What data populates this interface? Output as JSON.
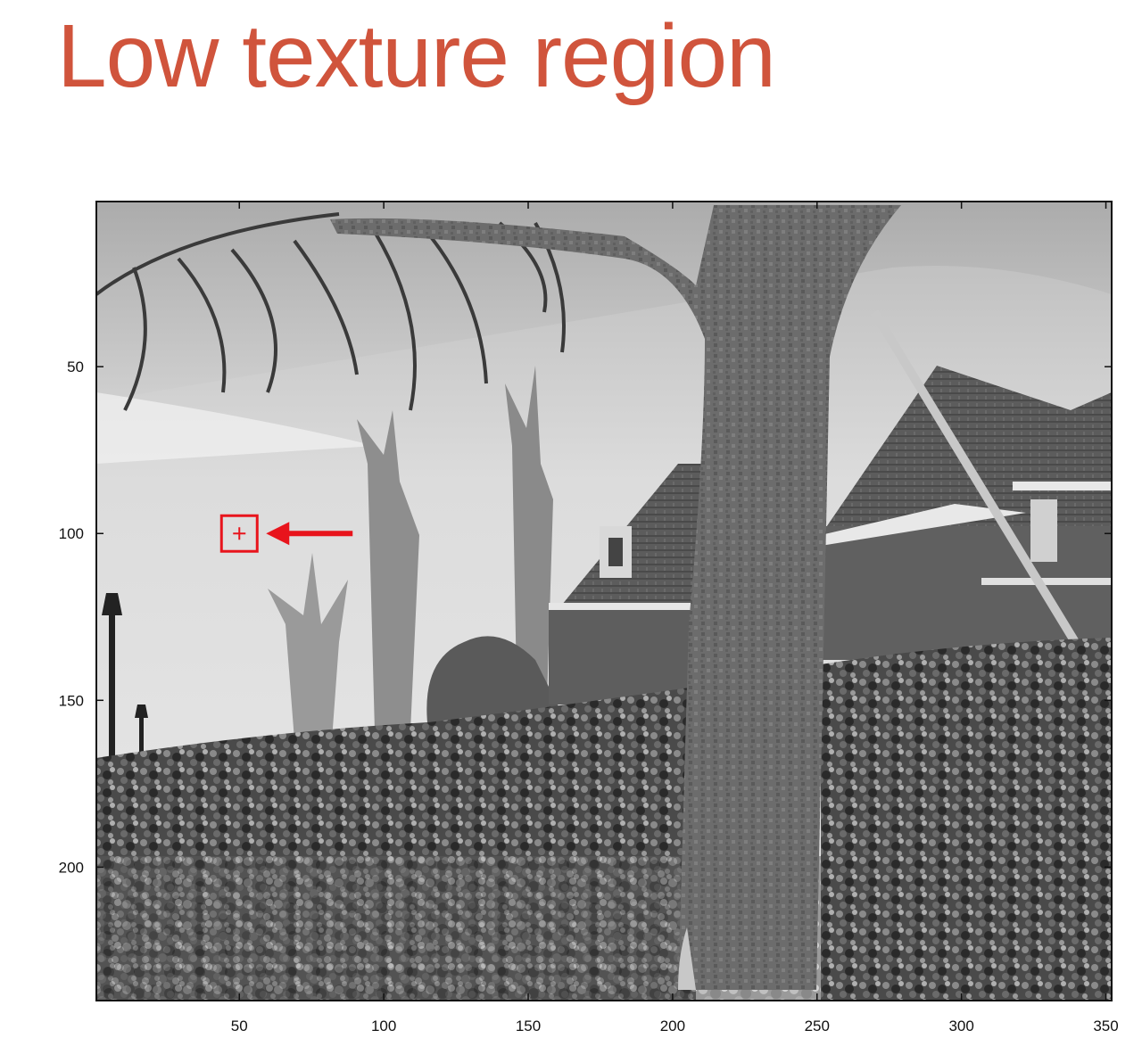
{
  "slide": {
    "title": "Low texture region"
  },
  "plot": {
    "x_ticks": [
      50,
      100,
      150,
      200,
      250,
      300,
      350
    ],
    "y_ticks": [
      50,
      100,
      150,
      200
    ],
    "xlim": [
      0.5,
      352
    ],
    "ylim": [
      0.5,
      240
    ],
    "y_axis_reversed": true
  },
  "annotation": {
    "marker_x": 50,
    "marker_y": 100,
    "color": "#e8141c"
  },
  "colors": {
    "title": "#d0543c",
    "annotation": "#e8141c"
  },
  "photo_scene": "grayscale outdoor scene with tree trunk, houses, bushes and sky"
}
